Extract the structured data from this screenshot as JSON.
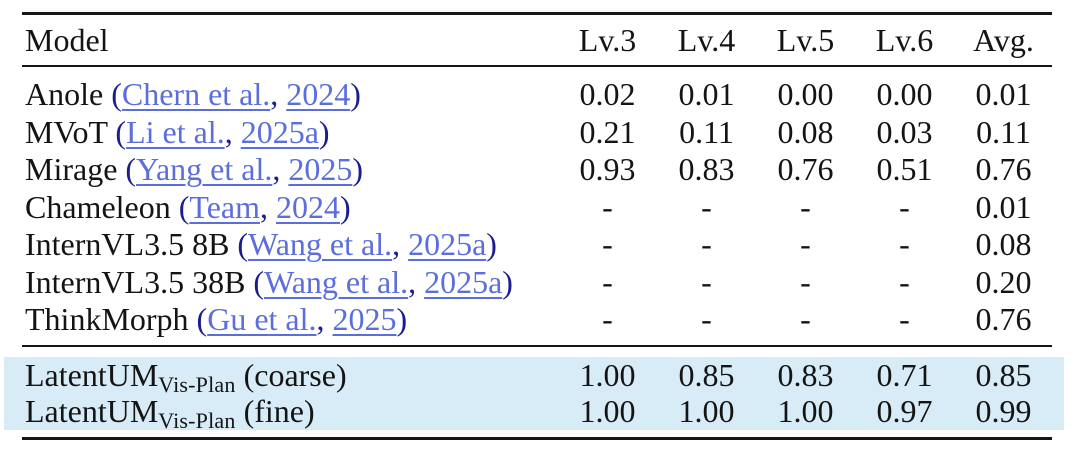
{
  "table": {
    "columns": [
      "Model",
      "Lv.3",
      "Lv.4",
      "Lv.5",
      "Lv.6",
      "Avg."
    ],
    "punct": {
      "open": "(",
      "close": ")",
      "sep": ", "
    },
    "rows": [
      {
        "model": "Anole",
        "cite_author": "Chern et al.",
        "cite_year": "2024",
        "values": [
          "0.02",
          "0.01",
          "0.00",
          "0.00",
          "0.01"
        ]
      },
      {
        "model": "MVoT",
        "cite_author": "Li et al.",
        "cite_year": "2025a",
        "values": [
          "0.21",
          "0.11",
          "0.08",
          "0.03",
          "0.11"
        ]
      },
      {
        "model": "Mirage",
        "cite_author": "Yang et al.",
        "cite_year": "2025",
        "values": [
          "0.93",
          "0.83",
          "0.76",
          "0.51",
          "0.76"
        ]
      },
      {
        "model": "Chameleon",
        "cite_author": "Team",
        "cite_year": "2024",
        "values": [
          "-",
          "-",
          "-",
          "-",
          "0.01"
        ]
      },
      {
        "model": "InternVL3.5 8B",
        "cite_author": "Wang et al.",
        "cite_year": "2025a",
        "values": [
          "-",
          "-",
          "-",
          "-",
          "0.08"
        ]
      },
      {
        "model": "InternVL3.5 38B",
        "cite_author": "Wang et al.",
        "cite_year": "2025a",
        "values": [
          "-",
          "-",
          "-",
          "-",
          "0.20"
        ]
      },
      {
        "model": "ThinkMorph",
        "cite_author": "Gu et al.",
        "cite_year": "2025",
        "values": [
          "-",
          "-",
          "-",
          "-",
          "0.76"
        ]
      }
    ],
    "highlight_rows": [
      {
        "model_base": "LatentUM",
        "model_sub": "Vis-Plan",
        "model_note": "(coarse)",
        "values": [
          "1.00",
          "0.85",
          "0.83",
          "0.71",
          "0.85"
        ]
      },
      {
        "model_base": "LatentUM",
        "model_sub": "Vis-Plan",
        "model_note": "(fine)",
        "values": [
          "1.00",
          "1.00",
          "1.00",
          "0.97",
          "0.99"
        ]
      }
    ],
    "colors": {
      "highlight": "#d8ecf7",
      "link_blue": "#5b6edc",
      "paren_navy": "#1c1c91"
    }
  }
}
